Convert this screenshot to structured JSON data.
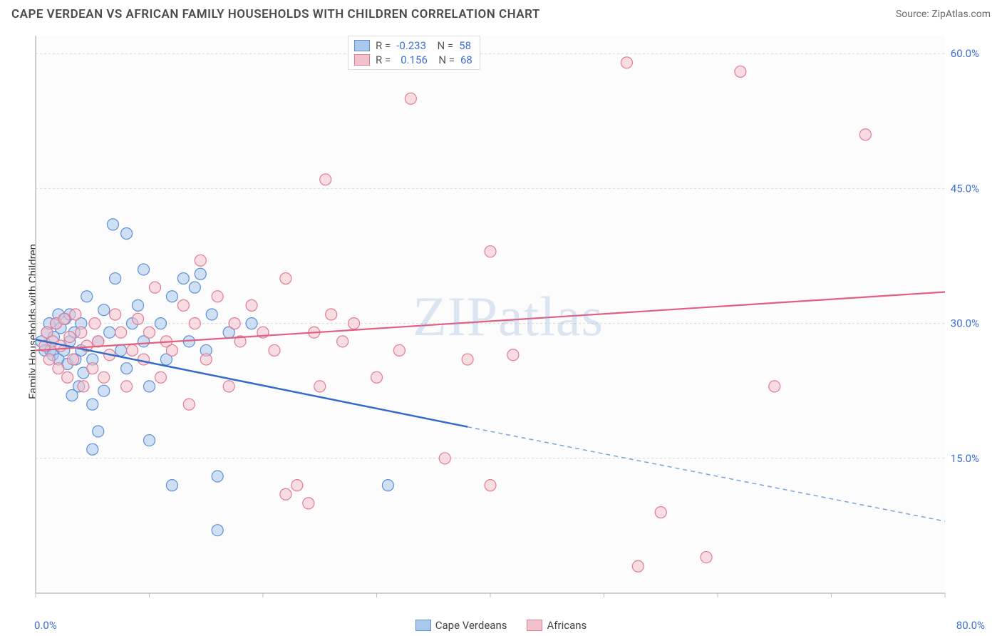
{
  "header": {
    "title": "CAPE VERDEAN VS AFRICAN FAMILY HOUSEHOLDS WITH CHILDREN CORRELATION CHART",
    "source_prefix": "Source: ",
    "source_name": "ZipAtlas.com"
  },
  "watermark": "ZIPatlas",
  "chart": {
    "type": "scatter",
    "ylabel": "Family Households with Children",
    "xlim": [
      0,
      80
    ],
    "ylim": [
      0,
      62
    ],
    "x_start_label": "0.0%",
    "x_end_label": "80.0%",
    "x_ticks": [
      0,
      10,
      20,
      30,
      40,
      50,
      60,
      70,
      80
    ],
    "y_ticks": [
      15,
      30,
      45,
      60
    ],
    "y_tick_labels": [
      "15.0%",
      "30.0%",
      "45.0%",
      "60.0%"
    ],
    "grid_color": "#d8d8d8",
    "axis_color": "#bfbfbf",
    "tick_label_color": "#3b6fd6",
    "label_fontsize": 15,
    "background": "#ffffff",
    "plot_bg": "#fcfcfc",
    "series": [
      {
        "name": "Cape Verdeans",
        "fill": "#a9c8ec",
        "stroke": "#5b8fd6",
        "line_color": "#356bc8",
        "line_dash_color": "#7aa3d8",
        "marker_r": 8,
        "R": "-0.233",
        "N": "58",
        "trend": {
          "x1": 0,
          "y1": 28.2,
          "x2_solid": 38,
          "y2_solid": 18.5,
          "x2": 80,
          "y2": 8
        },
        "points": [
          [
            0.5,
            28
          ],
          [
            0.8,
            27
          ],
          [
            1,
            29
          ],
          [
            1.2,
            30
          ],
          [
            1.3,
            27
          ],
          [
            1.5,
            26.5
          ],
          [
            1.6,
            28.5
          ],
          [
            1.8,
            30
          ],
          [
            2,
            31
          ],
          [
            2,
            26
          ],
          [
            2.2,
            29.5
          ],
          [
            2.5,
            27
          ],
          [
            2.6,
            30.5
          ],
          [
            2.8,
            25.5
          ],
          [
            3,
            28
          ],
          [
            3,
            31
          ],
          [
            3.2,
            22
          ],
          [
            3.4,
            29
          ],
          [
            3.5,
            26
          ],
          [
            3.8,
            23
          ],
          [
            4,
            27
          ],
          [
            4,
            30
          ],
          [
            4.2,
            24.5
          ],
          [
            4.5,
            33
          ],
          [
            5,
            26
          ],
          [
            5,
            21
          ],
          [
            5.5,
            28
          ],
          [
            5.5,
            18
          ],
          [
            6,
            31.5
          ],
          [
            6,
            22.5
          ],
          [
            6.5,
            29
          ],
          [
            6.8,
            41
          ],
          [
            7,
            35
          ],
          [
            7.5,
            27
          ],
          [
            8,
            25
          ],
          [
            8,
            40
          ],
          [
            8.5,
            30
          ],
          [
            9,
            32
          ],
          [
            9.5,
            28
          ],
          [
            9.5,
            36
          ],
          [
            10,
            23
          ],
          [
            10,
            17
          ],
          [
            11,
            30
          ],
          [
            11.5,
            26
          ],
          [
            12,
            33
          ],
          [
            12,
            12
          ],
          [
            13,
            35
          ],
          [
            13.5,
            28
          ],
          [
            14,
            34
          ],
          [
            14.5,
            35.5
          ],
          [
            15,
            27
          ],
          [
            15.5,
            31
          ],
          [
            16,
            7
          ],
          [
            16,
            13
          ],
          [
            17,
            29
          ],
          [
            19,
            30
          ],
          [
            31,
            12
          ],
          [
            5,
            16
          ]
        ]
      },
      {
        "name": "Africans",
        "fill": "#f3c1cc",
        "stroke": "#e37a96",
        "line_color": "#e15f80",
        "marker_r": 8,
        "R": "0.156",
        "N": "68",
        "trend": {
          "x1": 0,
          "y1": 27,
          "x2": 80,
          "y2": 33.5
        },
        "points": [
          [
            0.8,
            27.5
          ],
          [
            1,
            29
          ],
          [
            1.2,
            26
          ],
          [
            1.5,
            28
          ],
          [
            1.8,
            30
          ],
          [
            2,
            25
          ],
          [
            2.2,
            27.5
          ],
          [
            2.5,
            30.5
          ],
          [
            2.8,
            24
          ],
          [
            3,
            28.5
          ],
          [
            3.3,
            26
          ],
          [
            3.5,
            31
          ],
          [
            4,
            29
          ],
          [
            4.2,
            23
          ],
          [
            4.5,
            27.5
          ],
          [
            5,
            25
          ],
          [
            5.2,
            30
          ],
          [
            5.5,
            28
          ],
          [
            6,
            24
          ],
          [
            6.5,
            26.5
          ],
          [
            7,
            31
          ],
          [
            7.5,
            29
          ],
          [
            8,
            23
          ],
          [
            8.5,
            27
          ],
          [
            9,
            30.5
          ],
          [
            9.5,
            26
          ],
          [
            10,
            29
          ],
          [
            10.5,
            34
          ],
          [
            11,
            24
          ],
          [
            11.5,
            28
          ],
          [
            12,
            27
          ],
          [
            13,
            32
          ],
          [
            13.5,
            21
          ],
          [
            14,
            30
          ],
          [
            14.5,
            37
          ],
          [
            15,
            26
          ],
          [
            16,
            33
          ],
          [
            17,
            23
          ],
          [
            17.5,
            30
          ],
          [
            18,
            28
          ],
          [
            19,
            32
          ],
          [
            20,
            29
          ],
          [
            21,
            27
          ],
          [
            22,
            35
          ],
          [
            22,
            11
          ],
          [
            23,
            12
          ],
          [
            24,
            10
          ],
          [
            24.5,
            29
          ],
          [
            25,
            23
          ],
          [
            25.5,
            46
          ],
          [
            26,
            31
          ],
          [
            27,
            28
          ],
          [
            28,
            30
          ],
          [
            30,
            24
          ],
          [
            32,
            27
          ],
          [
            33,
            55
          ],
          [
            36,
            15
          ],
          [
            38,
            26
          ],
          [
            40,
            38
          ],
          [
            40,
            12
          ],
          [
            42,
            26.5
          ],
          [
            52,
            59
          ],
          [
            55,
            9
          ],
          [
            59,
            4
          ],
          [
            62,
            58
          ],
          [
            65,
            23
          ],
          [
            73,
            51
          ],
          [
            53,
            3
          ]
        ]
      }
    ],
    "legend": {
      "series1_label": "Cape Verdeans",
      "series2_label": "Africans"
    }
  }
}
